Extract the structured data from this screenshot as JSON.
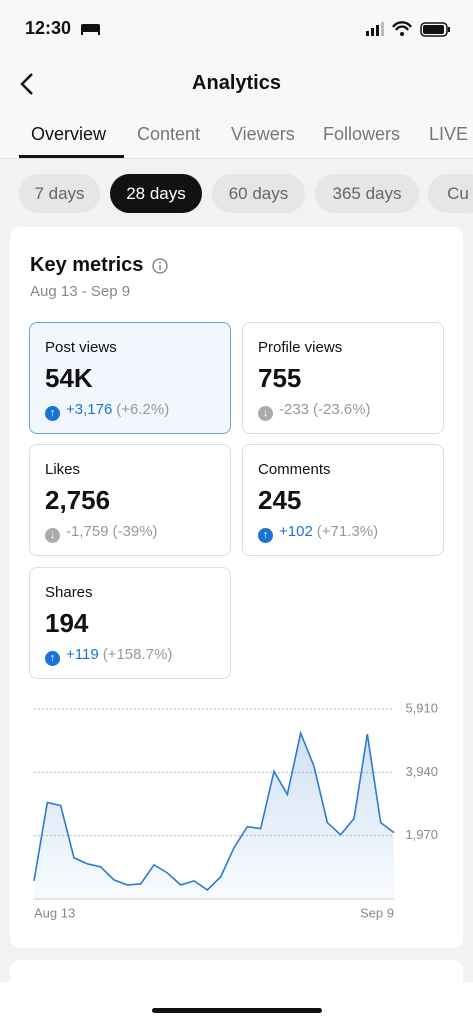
{
  "status": {
    "time": "12:30"
  },
  "header": {
    "title": "Analytics"
  },
  "tabs": [
    "Overview",
    "Content",
    "Viewers",
    "Followers",
    "LIVE"
  ],
  "filters": [
    "7 days",
    "28 days",
    "60 days",
    "365 days",
    "Cu"
  ],
  "metrics": {
    "title": "Key metrics",
    "date_range": "Aug 13 - Sep 9",
    "cards": [
      {
        "label": "Post views",
        "value": "54K",
        "change": "+3,176",
        "pct": "(+6.2%)",
        "trend": "up"
      },
      {
        "label": "Profile views",
        "value": "755",
        "change": "-233",
        "pct": "(-23.6%)",
        "trend": "down"
      },
      {
        "label": "Likes",
        "value": "2,756",
        "change": "-1,759",
        "pct": "(-39%)",
        "trend": "down"
      },
      {
        "label": "Comments",
        "value": "245",
        "change": "+102",
        "pct": "(+71.3%)",
        "trend": "up"
      },
      {
        "label": "Shares",
        "value": "194",
        "change": "+119",
        "pct": "(+158.7%)",
        "trend": "up"
      }
    ]
  },
  "chart_data": {
    "type": "line",
    "categories": [
      "Aug 13",
      null,
      null,
      null,
      null,
      null,
      null,
      null,
      null,
      null,
      null,
      null,
      null,
      null,
      null,
      null,
      null,
      null,
      null,
      null,
      null,
      null,
      null,
      null,
      null,
      null,
      null,
      "Sep 9"
    ],
    "values": [
      563,
      3002,
      2908,
      1282,
      1094,
      1000,
      594,
      438,
      469,
      1063,
      813,
      438,
      563,
      281,
      688,
      1595,
      2251,
      2189,
      3971,
      3252,
      5160,
      4128,
      2376,
      2001,
      2502,
      5128,
      2376,
      2064
    ],
    "ylim": [
      0,
      5910
    ],
    "yticks": [
      {
        "value": 1970,
        "label": "1,970"
      },
      {
        "value": 3940,
        "label": "3,940"
      },
      {
        "value": 5910,
        "label": "5,910"
      }
    ],
    "color": "#2b7bd0",
    "grid": true
  }
}
